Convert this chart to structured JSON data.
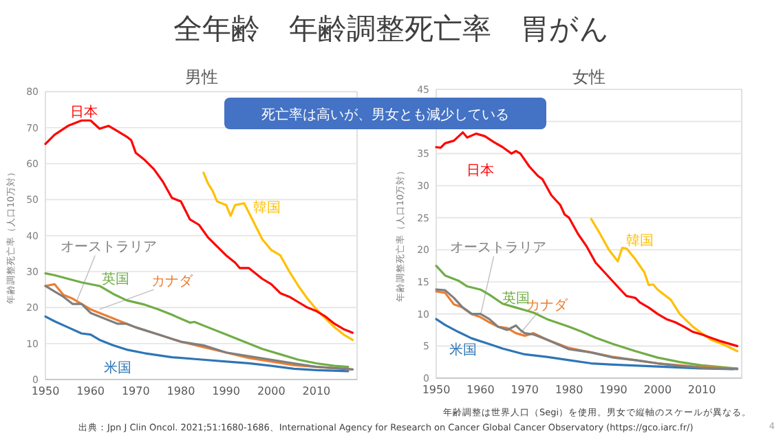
{
  "chart_data": [
    {
      "type": "line",
      "title": "男性",
      "ylabel": "年齢調整死亡率（人口10万対）",
      "xlim": [
        1950,
        2019
      ],
      "ylim": [
        0,
        80
      ],
      "xticks": [
        1950,
        1960,
        1970,
        1980,
        1990,
        2000,
        2010
      ],
      "yticks": [
        0,
        10,
        20,
        30,
        40,
        50,
        60,
        70,
        80
      ],
      "grid": "y",
      "annotations": [
        "全年齢　年齢調整死亡率　胃がん",
        "死亡率は高いが、男女とも減少している",
        "年齢調整は世界人口（Segi）を使用。男女で縦軸のスケールが異なる。",
        "出典：Jpn J Clin Oncol. 2021;51:1680-1686、International Agency for Research on Cancer Global Cancer Observatory (https://gco.iarc.fr/)",
        "4"
      ],
      "series": [
        {
          "name": "日本",
          "color": "#ff0000",
          "x": [
            1950,
            1952,
            1955,
            1958,
            1960,
            1962,
            1964,
            1966,
            1968,
            1969,
            1970,
            1972,
            1974,
            1976,
            1978,
            1980,
            1982,
            1984,
            1986,
            1988,
            1990,
            1992,
            1993,
            1995,
            1998,
            2000,
            2002,
            2004,
            2006,
            2008,
            2010,
            2012,
            2014,
            2016,
            2018
          ],
          "values": [
            65.5,
            68,
            70.5,
            72,
            72,
            69.7,
            70.5,
            69,
            67.5,
            66.5,
            63,
            61,
            58.5,
            55,
            50.5,
            49.5,
            44.5,
            43,
            39.5,
            37,
            34.5,
            32.5,
            31,
            31,
            28,
            26.5,
            24,
            23,
            21.5,
            20,
            19,
            17.5,
            15.5,
            14,
            13
          ]
        },
        {
          "name": "韓国",
          "color": "#ffc000",
          "x": [
            1985,
            1986,
            1987,
            1988,
            1990,
            1991,
            1992,
            1994,
            1996,
            1998,
            2000,
            2002,
            2004,
            2006,
            2008,
            2010,
            2012,
            2014,
            2016,
            2018
          ],
          "values": [
            57.5,
            54.5,
            52.5,
            49.5,
            48.5,
            45.5,
            48.5,
            49,
            44,
            39,
            36,
            34.5,
            30,
            26,
            22.5,
            19.5,
            17,
            14.5,
            12.5,
            11
          ]
        },
        {
          "name": "オーストラリア",
          "color": "#7f7f7f",
          "x": [
            1950,
            1952,
            1954,
            1956,
            1958,
            1960,
            1962,
            1964,
            1966,
            1968,
            1970,
            1975,
            1980,
            1985,
            1990,
            1995,
            2000,
            2005,
            2010,
            2018
          ],
          "values": [
            26,
            24.5,
            23,
            21,
            21,
            18.5,
            17.5,
            16.5,
            15.5,
            15.5,
            14.5,
            12.5,
            10.5,
            9.5,
            7.5,
            6.5,
            5.5,
            4.5,
            3.5,
            2.8
          ]
        },
        {
          "name": "カナダ",
          "color": "#ed7d31",
          "x": [
            1950,
            1952,
            1954,
            1956,
            1958,
            1960,
            1962,
            1964,
            1966,
            1968,
            1970,
            1975,
            1980,
            1985,
            1990,
            1995,
            2000,
            2005,
            2010,
            2018
          ],
          "values": [
            26,
            26.5,
            23.5,
            22.5,
            21,
            19.5,
            18.5,
            17.5,
            16.5,
            15.5,
            14.5,
            12.5,
            10.5,
            9,
            7.5,
            6,
            5,
            4,
            3.5,
            2.8
          ]
        },
        {
          "name": "英国",
          "color": "#70ad47",
          "x": [
            1950,
            1952,
            1955,
            1958,
            1962,
            1965,
            1968,
            1972,
            1975,
            1978,
            1982,
            1983,
            1986,
            1990,
            1994,
            1998,
            2002,
            2006,
            2010,
            2014,
            2017
          ],
          "values": [
            29.5,
            29,
            28,
            27,
            26,
            23.8,
            22,
            20.8,
            19.5,
            18,
            15.8,
            16,
            14.5,
            12.5,
            10.5,
            8.5,
            7,
            5.5,
            4.5,
            3.8,
            3.5
          ]
        },
        {
          "name": "米国",
          "color": "#2e75b6",
          "x": [
            1950,
            1952,
            1955,
            1958,
            1960,
            1962,
            1965,
            1968,
            1972,
            1978,
            1985,
            1990,
            1995,
            2000,
            2005,
            2010,
            2017
          ],
          "values": [
            17.5,
            16.2,
            14.5,
            12.8,
            12.5,
            11,
            9.5,
            8.3,
            7.3,
            6.2,
            5.5,
            5,
            4.5,
            3.8,
            3,
            2.6,
            2.3
          ]
        }
      ]
    },
    {
      "type": "line",
      "title": "女性",
      "ylabel": "年齢調整死亡率（人口10万対）",
      "xlim": [
        1950,
        2019
      ],
      "ylim": [
        0,
        45
      ],
      "xticks": [
        1950,
        1960,
        1970,
        1980,
        1990,
        2000,
        2010
      ],
      "yticks": [
        0,
        5,
        10,
        15,
        20,
        25,
        30,
        35,
        {
          "value": 40,
          "label": null
        },
        45
      ],
      "grid": "y",
      "series": [
        {
          "name": "日本",
          "color": "#ff0000",
          "x": [
            1950,
            1951,
            1952,
            1954,
            1956,
            1957,
            1959,
            1961,
            1963,
            1965,
            1967,
            1968,
            1969,
            1971,
            1973,
            1974,
            1976,
            1978,
            1979,
            1980,
            1982,
            1984,
            1986,
            1988,
            1990,
            1992,
            1993,
            1995,
            1996,
            1998,
            2000,
            2002,
            2004,
            2006,
            2008,
            2010,
            2012,
            2014,
            2016,
            2018
          ],
          "values": [
            36,
            35.9,
            36.6,
            37,
            38.3,
            37.5,
            38.1,
            37.7,
            36.8,
            36,
            35,
            35.4,
            35,
            33,
            31.5,
            31,
            28.5,
            27,
            25.5,
            25,
            22.5,
            20.5,
            18,
            16.5,
            15,
            13.5,
            12.8,
            12.5,
            11.8,
            11,
            10,
            9.2,
            8.7,
            8,
            7.2,
            6.8,
            6.3,
            5.8,
            5.4,
            5
          ]
        },
        {
          "name": "韓国",
          "color": "#ffc000",
          "x": [
            1985,
            1987,
            1989,
            1991,
            1992,
            1993,
            1995,
            1997,
            1998,
            1999,
            2000,
            2003,
            2005,
            2008,
            2012,
            2015,
            2018
          ],
          "values": [
            24.8,
            22.5,
            20,
            18.2,
            20.3,
            20.2,
            18.5,
            16.5,
            14.5,
            14.6,
            13.8,
            12.2,
            10,
            8,
            6,
            5.2,
            4.2
          ]
        },
        {
          "name": "オーストラリア",
          "color": "#7f7f7f",
          "x": [
            1950,
            1952,
            1954,
            1956,
            1958,
            1960,
            1962,
            1964,
            1966,
            1968,
            1969,
            1970,
            1972,
            1975,
            1980,
            1985,
            1990,
            1995,
            2000,
            2005,
            2010,
            2018
          ],
          "values": [
            13.8,
            13.7,
            12.5,
            11,
            10,
            10,
            9.2,
            8,
            7.5,
            8.2,
            7.5,
            7,
            6.8,
            6,
            4.5,
            4,
            3.2,
            2.8,
            2.3,
            1.9,
            1.6,
            1.4
          ]
        },
        {
          "name": "カナダ",
          "color": "#ed7d31",
          "x": [
            1950,
            1952,
            1954,
            1956,
            1958,
            1960,
            1962,
            1964,
            1966,
            1968,
            1970,
            1972,
            1975,
            1980,
            1985,
            1990,
            1995,
            2000,
            2005,
            2010,
            2018
          ],
          "values": [
            13.5,
            13.3,
            11.5,
            11,
            10,
            9.5,
            8.7,
            8,
            7.8,
            7,
            6.6,
            7,
            6,
            4.7,
            4,
            3.3,
            2.8,
            2.3,
            2,
            1.7,
            1.5
          ]
        },
        {
          "name": "英国",
          "color": "#70ad47",
          "x": [
            1950,
            1952,
            1955,
            1957,
            1960,
            1962,
            1965,
            1968,
            1972,
            1975,
            1980,
            1983,
            1986,
            1990,
            1995,
            2000,
            2005,
            2010,
            2018
          ],
          "values": [
            17.5,
            16,
            15.2,
            14.3,
            13.8,
            13,
            11.6,
            11,
            10.2,
            9.2,
            8,
            7.2,
            6.3,
            5.3,
            4.2,
            3.2,
            2.5,
            2,
            1.5
          ]
        },
        {
          "name": "米国",
          "color": "#2e75b6",
          "x": [
            1950,
            1952,
            1955,
            1958,
            1962,
            1965,
            1970,
            1975,
            1980,
            1985,
            1990,
            2000,
            2010,
            2017
          ],
          "values": [
            9.2,
            8.3,
            7.2,
            6.2,
            5.3,
            4.6,
            3.7,
            3.3,
            2.8,
            2.3,
            2.1,
            1.8,
            1.5,
            1.4
          ]
        }
      ]
    }
  ]
}
